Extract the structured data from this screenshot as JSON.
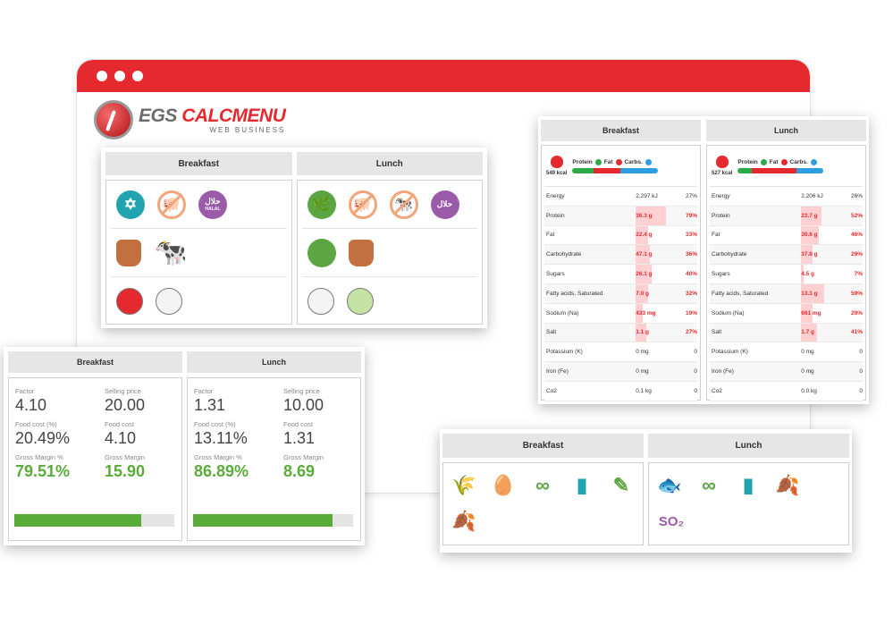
{
  "brand": {
    "part1": "EGS",
    "part2": "CALCMENU",
    "tagline": "WEB BUSINESS"
  },
  "diet_card": {
    "columns": [
      {
        "title": "Breakfast",
        "row1": [
          "kosher-icon",
          "no-pork-icon",
          "halal-icon"
        ],
        "row2": [
          "sack-icon",
          "cow-icon"
        ],
        "row3": [
          {
            "color": "#e52a2f"
          },
          {
            "color": "#f4f4f4"
          }
        ]
      },
      {
        "title": "Lunch",
        "row1": [
          "vegetarian-icon",
          "no-pork-icon",
          "no-beef-icon",
          "halal-icon"
        ],
        "row2": [
          "broccoli-icon",
          "sack-icon"
        ],
        "row3": [
          {
            "color": "#f4f4f4"
          },
          {
            "color": "#c4e3a4"
          }
        ]
      }
    ],
    "halal_text": "HALAL"
  },
  "nutrition_card": {
    "legend": {
      "protein": "Protein",
      "fat": "Fat",
      "carbs": "Carbs."
    },
    "colors": {
      "protein": "#2eaa4a",
      "fat": "#e52a2f",
      "carbs": "#2d9fe0"
    },
    "columns": [
      {
        "title": "Breakfast",
        "kcal": "549 kcal",
        "macro_split": [
          0.25,
          0.31,
          0.44
        ],
        "rows": [
          {
            "label": "Energy",
            "value": "2,297 kJ",
            "pct": "27%",
            "fill": 0,
            "flag": false
          },
          {
            "label": "Protein",
            "value": "36.3 g",
            "pct": "79%",
            "fill": 0.79,
            "flag": true
          },
          {
            "label": "Fat",
            "value": "22.4 g",
            "pct": "33%",
            "fill": 0.33,
            "flag": true
          },
          {
            "label": "Carbohydrate",
            "value": "47.1 g",
            "pct": "36%",
            "fill": 0.36,
            "flag": true
          },
          {
            "label": "Sugars",
            "value": "26.1 g",
            "pct": "40%",
            "fill": 0.4,
            "flag": true
          },
          {
            "label": "Fatty acids, Saturated",
            "value": "7.0 g",
            "pct": "32%",
            "fill": 0.32,
            "flag": true
          },
          {
            "label": "Sodium (Na)",
            "value": "433 mg",
            "pct": "19%",
            "fill": 0.19,
            "flag": true
          },
          {
            "label": "Salt",
            "value": "1.1 g",
            "pct": "27%",
            "fill": 0.27,
            "flag": true
          },
          {
            "label": "Potassium (K)",
            "value": "0 mg",
            "pct": "0",
            "fill": 0,
            "flag": false
          },
          {
            "label": "Iron (Fe)",
            "value": "0 mg",
            "pct": "0",
            "fill": 0,
            "flag": false
          },
          {
            "label": "Co2",
            "value": "0.1 kg",
            "pct": "0",
            "fill": 0,
            "flag": false
          }
        ]
      },
      {
        "title": "Lunch",
        "kcal": "527 kcal",
        "macro_split": [
          0.16,
          0.52,
          0.32
        ],
        "rows": [
          {
            "label": "Energy",
            "value": "2,206 kJ",
            "pct": "26%",
            "fill": 0,
            "flag": false
          },
          {
            "label": "Protein",
            "value": "23.7 g",
            "pct": "52%",
            "fill": 0.52,
            "flag": true
          },
          {
            "label": "Fat",
            "value": "30.6 g",
            "pct": "46%",
            "fill": 0.46,
            "flag": true
          },
          {
            "label": "Carbohydrate",
            "value": "37.8 g",
            "pct": "29%",
            "fill": 0.29,
            "flag": true
          },
          {
            "label": "Sugars",
            "value": "4.5 g",
            "pct": "7%",
            "fill": 0.07,
            "flag": true
          },
          {
            "label": "Fatty acids, Saturated",
            "value": "13.1 g",
            "pct": "59%",
            "fill": 0.59,
            "flag": true
          },
          {
            "label": "Sodium (Na)",
            "value": "661 mg",
            "pct": "29%",
            "fill": 0.29,
            "flag": true
          },
          {
            "label": "Salt",
            "value": "1.7 g",
            "pct": "41%",
            "fill": 0.41,
            "flag": true
          },
          {
            "label": "Potassium (K)",
            "value": "0 mg",
            "pct": "0",
            "fill": 0,
            "flag": false
          },
          {
            "label": "Iron (Fe)",
            "value": "0 mg",
            "pct": "0",
            "fill": 0,
            "flag": false
          },
          {
            "label": "Co2",
            "value": "0.0 kg",
            "pct": "0",
            "fill": 0,
            "flag": false
          }
        ]
      }
    ]
  },
  "cost_card": {
    "labels": {
      "factor": "Factor",
      "selling_price": "Selling price",
      "food_cost_pct": "Food cost (%)",
      "food_cost": "Food cost",
      "gross_margin_pct": "Gross Margin %",
      "gross_margin": "Gross Margin"
    },
    "columns": [
      {
        "title": "Breakfast",
        "factor": "4.10",
        "selling_price": "20.00",
        "food_cost_pct": "20.49%",
        "food_cost": "4.10",
        "gross_margin_pct": "79.51%",
        "gross_margin": "15.90",
        "margin_level": 0.7951
      },
      {
        "title": "Lunch",
        "factor": "1.31",
        "selling_price": "10.00",
        "food_cost_pct": "13.11%",
        "food_cost": "1.31",
        "gross_margin_pct": "86.89%",
        "gross_margin": "8.69",
        "margin_level": 0.8689
      }
    ]
  },
  "allergen_card": {
    "columns": [
      {
        "title": "Breakfast",
        "icons": [
          "gluten-icon",
          "egg-icon",
          "soy-icon",
          "milk-icon",
          "celery-icon",
          "nuts-icon"
        ]
      },
      {
        "title": "Lunch",
        "icons": [
          "fish-icon",
          "soy-icon",
          "milk-icon",
          "nuts-icon",
          "sulphites-icon"
        ]
      }
    ],
    "so2_text": "SO₂"
  }
}
